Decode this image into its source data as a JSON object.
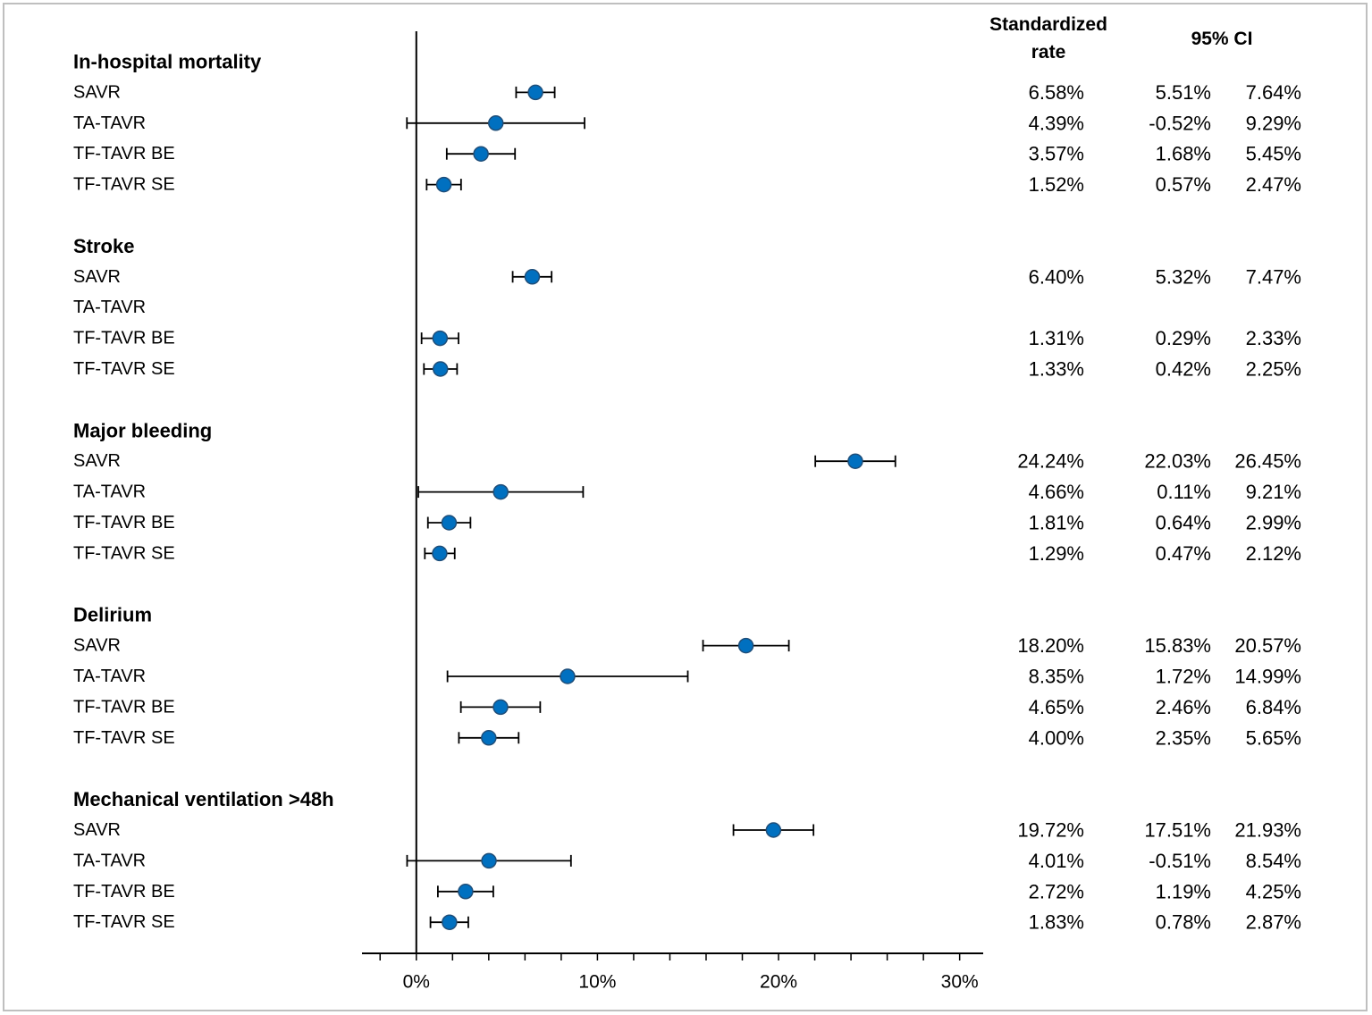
{
  "chart_data": {
    "type": "scatter",
    "xlim": [
      -3,
      31.3
    ],
    "xticks": [
      0,
      10,
      20,
      30
    ],
    "xtick_labels": [
      "0%",
      "10%",
      "20%",
      "30%"
    ],
    "minor_tick_step": 2,
    "grid": false,
    "columns": {
      "rate": "Standardized rate",
      "ci": "95% CI"
    },
    "colors": {
      "marker_fill": "#0070C0",
      "marker_edge": "#1F4E79",
      "line": "#000000",
      "frame": "#BFBFBF"
    },
    "groups": [
      {
        "name": "In-hospital mortality",
        "rows": [
          {
            "label": "SAVR",
            "rate": 6.58,
            "ci_low": 5.51,
            "ci_high": 7.64
          },
          {
            "label": "TA-TAVR",
            "rate": 4.39,
            "ci_low": -0.52,
            "ci_high": 9.29
          },
          {
            "label": "TF-TAVR BE",
            "rate": 3.57,
            "ci_low": 1.68,
            "ci_high": 5.45
          },
          {
            "label": "TF-TAVR SE",
            "rate": 1.52,
            "ci_low": 0.57,
            "ci_high": 2.47
          }
        ]
      },
      {
        "name": "Stroke",
        "rows": [
          {
            "label": "SAVR",
            "rate": 6.4,
            "ci_low": 5.32,
            "ci_high": 7.47
          },
          {
            "label": "TA-TAVR",
            "rate": null,
            "ci_low": null,
            "ci_high": null
          },
          {
            "label": "TF-TAVR BE",
            "rate": 1.31,
            "ci_low": 0.29,
            "ci_high": 2.33
          },
          {
            "label": "TF-TAVR SE",
            "rate": 1.33,
            "ci_low": 0.42,
            "ci_high": 2.25
          }
        ]
      },
      {
        "name": "Major bleeding",
        "rows": [
          {
            "label": "SAVR",
            "rate": 24.24,
            "ci_low": 22.03,
            "ci_high": 26.45
          },
          {
            "label": "TA-TAVR",
            "rate": 4.66,
            "ci_low": 0.11,
            "ci_high": 9.21
          },
          {
            "label": "TF-TAVR BE",
            "rate": 1.81,
            "ci_low": 0.64,
            "ci_high": 2.99
          },
          {
            "label": "TF-TAVR SE",
            "rate": 1.29,
            "ci_low": 0.47,
            "ci_high": 2.12
          }
        ]
      },
      {
        "name": "Delirium",
        "rows": [
          {
            "label": "SAVR",
            "rate": 18.2,
            "ci_low": 15.83,
            "ci_high": 20.57
          },
          {
            "label": "TA-TAVR",
            "rate": 8.35,
            "ci_low": 1.72,
            "ci_high": 14.99
          },
          {
            "label": "TF-TAVR BE",
            "rate": 4.65,
            "ci_low": 2.46,
            "ci_high": 6.84
          },
          {
            "label": "TF-TAVR SE",
            "rate": 4.0,
            "ci_low": 2.35,
            "ci_high": 5.65
          }
        ]
      },
      {
        "name": "Mechanical ventilation >48h",
        "rows": [
          {
            "label": "SAVR",
            "rate": 19.72,
            "ci_low": 17.51,
            "ci_high": 21.93
          },
          {
            "label": "TA-TAVR",
            "rate": 4.01,
            "ci_low": -0.51,
            "ci_high": 8.54
          },
          {
            "label": "TF-TAVR BE",
            "rate": 2.72,
            "ci_low": 1.19,
            "ci_high": 4.25
          },
          {
            "label": "TF-TAVR SE",
            "rate": 1.83,
            "ci_low": 0.78,
            "ci_high": 2.87
          }
        ]
      }
    ]
  }
}
